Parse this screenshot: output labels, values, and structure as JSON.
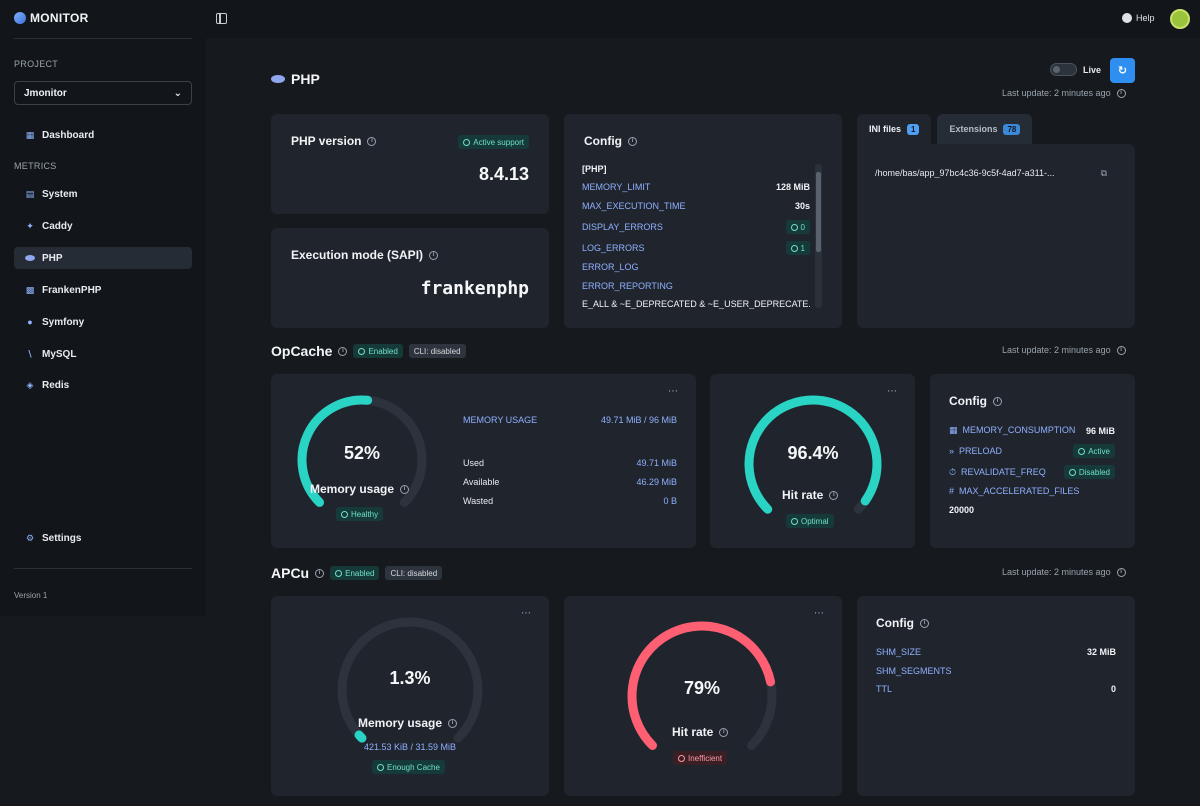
{
  "app": {
    "name": "MONITOR",
    "version": "Version 1"
  },
  "header": {
    "help_label": "Help"
  },
  "sidebar": {
    "project_label": "PROJECT",
    "project_value": "Jmonitor",
    "dashboard_label": "Dashboard",
    "metrics_label": "METRICS",
    "items": [
      {
        "label": "System",
        "icon": "server-icon"
      },
      {
        "label": "Caddy",
        "icon": "caddy-icon"
      },
      {
        "label": "PHP",
        "icon": "php-icon"
      },
      {
        "label": "FrankenPHP",
        "icon": "frankenphp-icon"
      },
      {
        "label": "Symfony",
        "icon": "symfony-icon"
      },
      {
        "label": "MySQL",
        "icon": "mysql-icon"
      },
      {
        "label": "Redis",
        "icon": "redis-icon"
      }
    ],
    "settings_label": "Settings"
  },
  "page": {
    "title": "PHP",
    "live_label": "Live",
    "last_update": "Last update: 2 minutes ago"
  },
  "php_version": {
    "title": "PHP version",
    "badge": "Active support",
    "value": "8.4.13"
  },
  "sapi": {
    "title": "Execution mode (SAPI)",
    "value": "frankenphp"
  },
  "config": {
    "title": "Config",
    "section": "[PHP]",
    "rows": [
      {
        "key": "MEMORY_LIMIT",
        "value": "128 MiB"
      },
      {
        "key": "MAX_EXECUTION_TIME",
        "value": "30s"
      },
      {
        "key": "DISPLAY_ERRORS",
        "value": "0"
      },
      {
        "key": "LOG_ERRORS",
        "value": "1"
      },
      {
        "key": "ERROR_LOG",
        "value": ""
      },
      {
        "key": "ERROR_REPORTING",
        "value": ""
      }
    ],
    "error_reporting_value": "E_ALL & ~E_DEPRECATED & ~E_USER_DEPRECATE..."
  },
  "ini": {
    "tab_ini": "INI files",
    "tab_ini_count": "1",
    "tab_ext": "Extensions",
    "tab_ext_count": "78",
    "path": "/home/bas/app_97bc4c36-9c5f-4ad7-a311-..."
  },
  "opcache": {
    "title": "OpCache",
    "badge_enabled": "Enabled",
    "badge_cli": "CLI: disabled",
    "last_update": "Last update: 2 minutes ago",
    "memory": {
      "percent_label": "52%",
      "percent": 52,
      "label": "Memory usage",
      "badge": "Healthy",
      "usage_key": "MEMORY USAGE",
      "usage_value": "49.71 MiB / 96 MiB",
      "used_key": "Used",
      "used_value": "49.71 MiB",
      "available_key": "Available",
      "available_value": "46.29 MiB",
      "wasted_key": "Wasted",
      "wasted_value": "0 B"
    },
    "hit": {
      "percent_label": "96.4%",
      "percent": 96.4,
      "label": "Hit rate",
      "badge": "Optimal"
    },
    "config": {
      "title": "Config",
      "memory_consumption_key": "MEMORY_CONSUMPTION",
      "memory_consumption_value": "96 MiB",
      "preload_key": "PRELOAD",
      "preload_value": "Active",
      "revalidate_key": "REVALIDATE_FREQ",
      "revalidate_value": "Disabled",
      "max_files_key": "MAX_ACCELERATED_FILES",
      "max_files_value": "20000"
    }
  },
  "apcu": {
    "title": "APCu",
    "badge_enabled": "Enabled",
    "badge_cli": "CLI: disabled",
    "last_update": "Last update: 2 minutes ago",
    "memory": {
      "percent_label": "1.3%",
      "percent": 1.3,
      "label": "Memory usage",
      "detail": "421.53 KiB / 31.59 MiB",
      "badge": "Enough Cache"
    },
    "hit": {
      "percent_label": "79%",
      "percent": 79,
      "label": "Hit rate",
      "badge": "Inefficient"
    },
    "config": {
      "title": "Config",
      "rows": [
        {
          "key": "SHM_SIZE",
          "value": "32 MiB"
        },
        {
          "key": "SHM_SEGMENTS",
          "value": ""
        },
        {
          "key": "TTL",
          "value": "0"
        }
      ]
    }
  },
  "colors": {
    "teal": "#2ad4c4",
    "red": "#ff5f73",
    "track": "#2d333c",
    "accent": "#2f8ff0"
  }
}
